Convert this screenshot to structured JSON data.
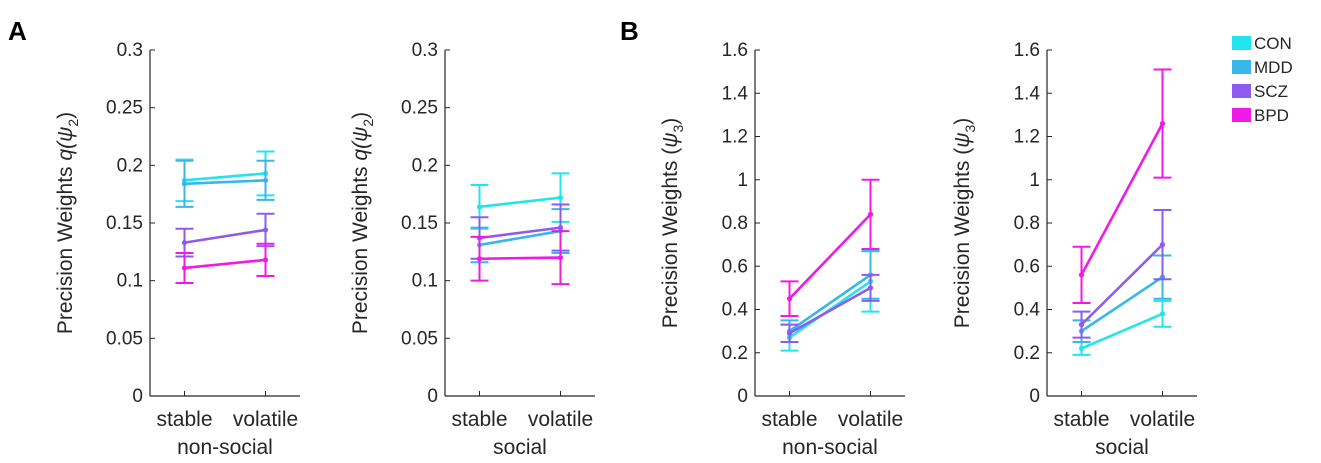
{
  "figure": {
    "panel_letters": [
      "A",
      "B"
    ],
    "legend": [
      {
        "label": "CON",
        "color": "#22e4ec"
      },
      {
        "label": "MDD",
        "color": "#38b7e8"
      },
      {
        "label": "SCZ",
        "color": "#8e5bf0"
      },
      {
        "label": "BPD",
        "color": "#f01ae6"
      }
    ]
  },
  "chart_data": [
    {
      "type": "line",
      "panel": "A",
      "ylabel_prefix": "Precision Weights  ",
      "ylabel_math": "q(ψ",
      "ylabel_sub": "2",
      "ylabel_suffix": ")",
      "categories": [
        "stable",
        "volatile"
      ],
      "group_label": "non-social",
      "ylim": [
        0,
        0.3
      ],
      "yticks": [
        "0",
        "0.05",
        "0.1",
        "0.15",
        "0.2",
        "0.25",
        "0.3"
      ],
      "ytick_values": [
        0,
        0.05,
        0.1,
        0.15,
        0.2,
        0.25,
        0.3
      ],
      "series": [
        {
          "name": "CON",
          "values": [
            0.187,
            0.193
          ],
          "err": [
            0.018,
            0.019
          ]
        },
        {
          "name": "MDD",
          "values": [
            0.184,
            0.187
          ],
          "err": [
            0.02,
            0.017
          ]
        },
        {
          "name": "SCZ",
          "values": [
            0.133,
            0.144
          ],
          "err": [
            0.012,
            0.014
          ]
        },
        {
          "name": "BPD",
          "values": [
            0.111,
            0.118
          ],
          "err": [
            0.013,
            0.014
          ]
        }
      ]
    },
    {
      "type": "line",
      "panel": "A",
      "ylabel_prefix": "Precision Weights  ",
      "ylabel_math": "q(ψ",
      "ylabel_sub": "2",
      "ylabel_suffix": ")",
      "categories": [
        "stable",
        "volatile"
      ],
      "group_label": "social",
      "ylim": [
        0,
        0.3
      ],
      "yticks": [
        "0",
        "0.05",
        "0.1",
        "0.15",
        "0.2",
        "0.25",
        "0.3"
      ],
      "ytick_values": [
        0,
        0.05,
        0.1,
        0.15,
        0.2,
        0.25,
        0.3
      ],
      "series": [
        {
          "name": "CON",
          "values": [
            0.164,
            0.172
          ],
          "err": [
            0.019,
            0.021
          ]
        },
        {
          "name": "MDD",
          "values": [
            0.131,
            0.143
          ],
          "err": [
            0.015,
            0.019
          ]
        },
        {
          "name": "SCZ",
          "values": [
            0.137,
            0.146
          ],
          "err": [
            0.018,
            0.02
          ]
        },
        {
          "name": "BPD",
          "values": [
            0.119,
            0.12
          ],
          "err": [
            0.019,
            0.023
          ]
        }
      ]
    },
    {
      "type": "line",
      "panel": "B",
      "ylabel_prefix": "Precision Weights (",
      "ylabel_math": "ψ",
      "ylabel_sub": "3",
      "ylabel_suffix": ")",
      "categories": [
        "stable",
        "volatile"
      ],
      "group_label": "non-social",
      "ylim": [
        0,
        1.6
      ],
      "yticks": [
        "0",
        "0.2",
        "0.4",
        "0.6",
        "0.8",
        "1",
        "1.2",
        "1.4",
        "1.6"
      ],
      "ytick_values": [
        0,
        0.2,
        0.4,
        0.6,
        0.8,
        1,
        1.2,
        1.4,
        1.6
      ],
      "series": [
        {
          "name": "CON",
          "values": [
            0.27,
            0.53
          ],
          "err": [
            0.06,
            0.14
          ]
        },
        {
          "name": "MDD",
          "values": [
            0.3,
            0.56
          ],
          "err": [
            0.05,
            0.11
          ]
        },
        {
          "name": "SCZ",
          "values": [
            0.29,
            0.5
          ],
          "err": [
            0.04,
            0.06
          ]
        },
        {
          "name": "BPD",
          "values": [
            0.45,
            0.84
          ],
          "err": [
            0.08,
            0.16
          ]
        }
      ]
    },
    {
      "type": "line",
      "panel": "B",
      "ylabel_prefix": "Precision Weights (",
      "ylabel_math": "ψ",
      "ylabel_sub": "3",
      "ylabel_suffix": ")",
      "categories": [
        "stable",
        "volatile"
      ],
      "group_label": "social",
      "ylim": [
        0,
        1.6
      ],
      "yticks": [
        "0",
        "0.2",
        "0.4",
        "0.6",
        "0.8",
        "1",
        "1.2",
        "1.4",
        "1.6"
      ],
      "ytick_values": [
        0,
        0.2,
        0.4,
        0.6,
        0.8,
        1,
        1.2,
        1.4,
        1.6
      ],
      "series": [
        {
          "name": "CON",
          "values": [
            0.22,
            0.38
          ],
          "err": [
            0.03,
            0.06
          ]
        },
        {
          "name": "MDD",
          "values": [
            0.3,
            0.55
          ],
          "err": [
            0.05,
            0.1
          ]
        },
        {
          "name": "SCZ",
          "values": [
            0.33,
            0.7
          ],
          "err": [
            0.06,
            0.16
          ]
        },
        {
          "name": "BPD",
          "values": [
            0.56,
            1.26
          ],
          "err": [
            0.13,
            0.25
          ]
        }
      ]
    }
  ]
}
